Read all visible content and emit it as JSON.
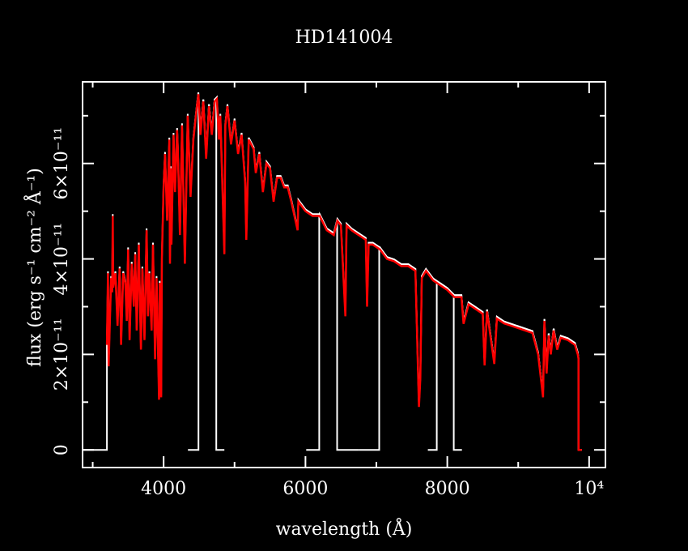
{
  "chart_data": {
    "type": "line",
    "title": "HD141004",
    "xlabel": "wavelength (Å)",
    "ylabel": "flux (erg s⁻¹ cm⁻² Å⁻¹)",
    "xlim": [
      2857,
      10230
    ],
    "ylim": [
      -3.7e-12,
      7.71e-11
    ],
    "x_ticks": [
      {
        "value": 4000,
        "label": "4000"
      },
      {
        "value": 6000,
        "label": "6000"
      },
      {
        "value": 8000,
        "label": "8000"
      },
      {
        "value": 10000,
        "label": "10⁴"
      }
    ],
    "x_minor_ticks": [
      3000,
      5000,
      7000,
      9000
    ],
    "y_ticks": [
      {
        "value": 0,
        "label": "0"
      },
      {
        "value": 2e-11,
        "label": "2×10⁻¹¹"
      },
      {
        "value": 4e-11,
        "label": "4×10⁻¹¹"
      },
      {
        "value": 6e-11,
        "label": "6×10⁻¹¹"
      }
    ],
    "y_minor_ticks": [
      1e-11,
      3e-11,
      5e-11,
      7e-11
    ],
    "y_unit_scale": 1e-11,
    "grid": false,
    "background": "#000000",
    "axis_color": "#ffffff",
    "series": [
      {
        "color": "#ff0000",
        "points": [
          [
            3200,
            2.2
          ],
          [
            3215,
            3.7
          ],
          [
            3225,
            1.75
          ],
          [
            3240,
            2.6
          ],
          [
            3260,
            3.6
          ],
          [
            3275,
            3.3
          ],
          [
            3283,
            4.9
          ],
          [
            3290,
            3.4
          ],
          [
            3320,
            3.7
          ],
          [
            3350,
            2.6
          ],
          [
            3380,
            3.8
          ],
          [
            3400,
            2.2
          ],
          [
            3430,
            3.7
          ],
          [
            3460,
            3.5
          ],
          [
            3480,
            2.7
          ],
          [
            3500,
            4.2
          ],
          [
            3520,
            2.3
          ],
          [
            3550,
            3.9
          ],
          [
            3580,
            3.0
          ],
          [
            3600,
            4.1
          ],
          [
            3620,
            2.5
          ],
          [
            3650,
            4.3
          ],
          [
            3680,
            2.1
          ],
          [
            3700,
            3.8
          ],
          [
            3730,
            2.3
          ],
          [
            3760,
            4.6
          ],
          [
            3780,
            2.8
          ],
          [
            3800,
            3.7
          ],
          [
            3830,
            2.5
          ],
          [
            3850,
            4.3
          ],
          [
            3880,
            1.9
          ],
          [
            3900,
            3.6
          ],
          [
            3935,
            1.05
          ],
          [
            3945,
            3.5
          ],
          [
            3965,
            1.1
          ],
          [
            3975,
            4.0
          ],
          [
            4000,
            5.5
          ],
          [
            4020,
            6.2
          ],
          [
            4050,
            4.8
          ],
          [
            4080,
            6.5
          ],
          [
            4090,
            3.9
          ],
          [
            4100,
            5.9
          ],
          [
            4110,
            4.3
          ],
          [
            4140,
            6.6
          ],
          [
            4160,
            5.4
          ],
          [
            4190,
            6.7
          ],
          [
            4200,
            6.3
          ],
          [
            4230,
            4.5
          ],
          [
            4260,
            6.8
          ],
          [
            4300,
            3.9
          ],
          [
            4340,
            7.0
          ],
          [
            4380,
            5.3
          ],
          [
            4420,
            6.5
          ],
          [
            4470,
            7.2
          ],
          [
            4490,
            7.45
          ],
          [
            4520,
            6.6
          ],
          [
            4560,
            7.3
          ],
          [
            4600,
            6.1
          ],
          [
            4640,
            7.2
          ],
          [
            4680,
            6.6
          ],
          [
            4720,
            7.3
          ],
          [
            4750,
            7.35
          ],
          [
            4780,
            6.5
          ],
          [
            4800,
            7.0
          ],
          [
            4857,
            4.1
          ],
          [
            4870,
            6.8
          ],
          [
            4900,
            7.2
          ],
          [
            4950,
            6.4
          ],
          [
            5000,
            6.9
          ],
          [
            5050,
            6.2
          ],
          [
            5100,
            6.6
          ],
          [
            5150,
            5.6
          ],
          [
            5166,
            4.4
          ],
          [
            5200,
            6.5
          ],
          [
            5270,
            6.3
          ],
          [
            5300,
            5.8
          ],
          [
            5350,
            6.2
          ],
          [
            5400,
            5.4
          ],
          [
            5450,
            6.0
          ],
          [
            5500,
            5.9
          ],
          [
            5550,
            5.2
          ],
          [
            5600,
            5.7
          ],
          [
            5650,
            5.7
          ],
          [
            5700,
            5.5
          ],
          [
            5750,
            5.5
          ],
          [
            5800,
            5.2
          ],
          [
            5890,
            4.6
          ],
          [
            5900,
            5.2
          ],
          [
            6000,
            5.0
          ],
          [
            6100,
            4.9
          ],
          [
            6200,
            4.9
          ],
          [
            6300,
            4.6
          ],
          [
            6400,
            4.5
          ],
          [
            6450,
            4.8
          ],
          [
            6500,
            4.7
          ],
          [
            6563,
            2.8
          ],
          [
            6580,
            4.7
          ],
          [
            6650,
            4.6
          ],
          [
            6700,
            4.55
          ],
          [
            6800,
            4.45
          ],
          [
            6850,
            4.4
          ],
          [
            6869,
            3.0
          ],
          [
            6890,
            4.3
          ],
          [
            6950,
            4.3
          ],
          [
            7050,
            4.2
          ],
          [
            7150,
            4.0
          ],
          [
            7250,
            3.95
          ],
          [
            7350,
            3.85
          ],
          [
            7450,
            3.85
          ],
          [
            7550,
            3.75
          ],
          [
            7600,
            0.9
          ],
          [
            7620,
            1.5
          ],
          [
            7640,
            3.6
          ],
          [
            7700,
            3.75
          ],
          [
            7800,
            3.55
          ],
          [
            7900,
            3.45
          ],
          [
            8000,
            3.35
          ],
          [
            8100,
            3.2
          ],
          [
            8200,
            3.2
          ],
          [
            8229,
            2.64
          ],
          [
            8300,
            3.05
          ],
          [
            8400,
            2.95
          ],
          [
            8500,
            2.85
          ],
          [
            8526,
            1.77
          ],
          [
            8560,
            2.9
          ],
          [
            8663,
            1.8
          ],
          [
            8700,
            2.75
          ],
          [
            8800,
            2.65
          ],
          [
            8900,
            2.6
          ],
          [
            9000,
            2.55
          ],
          [
            9100,
            2.5
          ],
          [
            9200,
            2.45
          ],
          [
            9280,
            2.0
          ],
          [
            9350,
            1.1
          ],
          [
            9370,
            2.7
          ],
          [
            9400,
            1.6
          ],
          [
            9430,
            2.4
          ],
          [
            9460,
            2.0
          ],
          [
            9500,
            2.5
          ],
          [
            9550,
            2.1
          ],
          [
            9600,
            2.35
          ],
          [
            9700,
            2.3
          ],
          [
            9800,
            2.2
          ],
          [
            9840,
            2.0
          ],
          [
            9851,
            1.9
          ],
          [
            9852,
            0
          ],
          [
            9897,
            0
          ]
        ]
      },
      {
        "color": "#ffffff",
        "segments": [
          {
            "zero_from": 2857,
            "data_from": 3200,
            "data_to": 4743,
            "zero_to": 4857
          },
          {
            "zero_from": 4343,
            "data_from": 4491,
            "data_to": 6446,
            "zero_to": 6754
          },
          {
            "zero_from": 6011,
            "data_from": 6194,
            "data_to": 8091,
            "zero_to": 8206
          },
          {
            "zero_from": 6754,
            "data_from": 7040,
            "data_to": 9851,
            "zero_to": 9851
          },
          {
            "zero_from": 7726,
            "data_from": 7851,
            "data_to": 9851,
            "zero_to": 9897
          }
        ]
      }
    ]
  }
}
